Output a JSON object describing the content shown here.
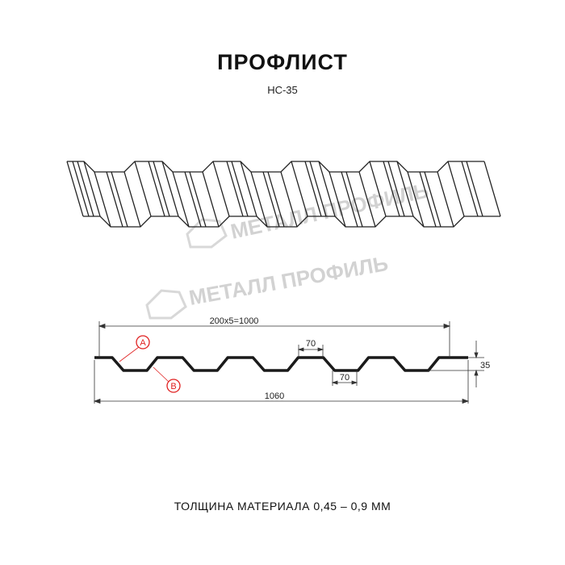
{
  "title": "ПРОФЛИСТ",
  "subtitle": "НС-35",
  "footer": "ТОЛЩИНА МАТЕРИАЛА 0,45 – 0,9 ММ",
  "watermark": "МЕТАЛЛ ПРОФИЛЬ",
  "dimensions": {
    "pitch_total": "200x5=1000",
    "top_width": "70",
    "bottom_width": "70",
    "height": "35",
    "total_width": "1060"
  },
  "callouts": {
    "a": "A",
    "b": "B"
  },
  "colors": {
    "profile": "#1a1a1a",
    "callout": "#e02020",
    "watermark": "#d2d2d2"
  }
}
